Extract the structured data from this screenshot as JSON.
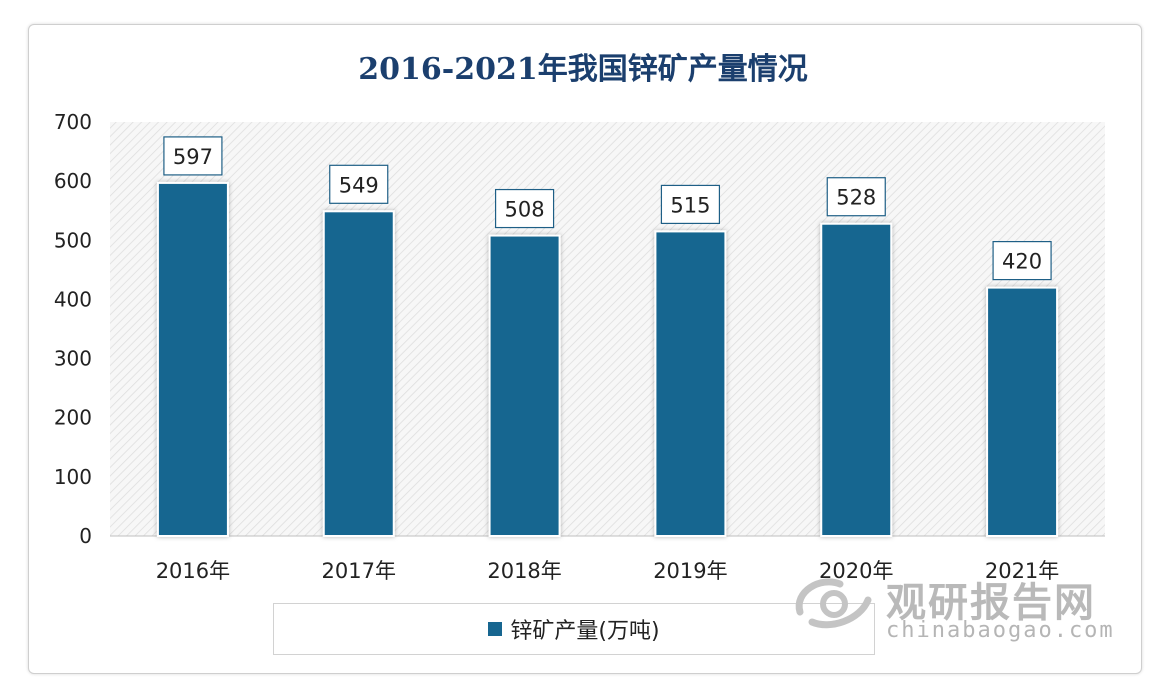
{
  "chart_data": {
    "type": "bar",
    "title": "2016-2021年我国锌矿产量情况",
    "categories": [
      "2016年",
      "2017年",
      "2018年",
      "2019年",
      "2020年",
      "2021年"
    ],
    "series": [
      {
        "name": "锌矿产量(万吨)",
        "values": [
          597,
          549,
          508,
          515,
          528,
          420
        ]
      }
    ],
    "ylim": [
      0,
      700
    ],
    "yticks": [
      "0",
      "100",
      "200",
      "300",
      "400",
      "500",
      "600",
      "700"
    ],
    "xlabel": "",
    "ylabel": "",
    "grid": false,
    "legend": "bottom",
    "bar_color": "#176690"
  },
  "watermark": {
    "name": "观研报告网",
    "url": "chinabaogao.com"
  }
}
